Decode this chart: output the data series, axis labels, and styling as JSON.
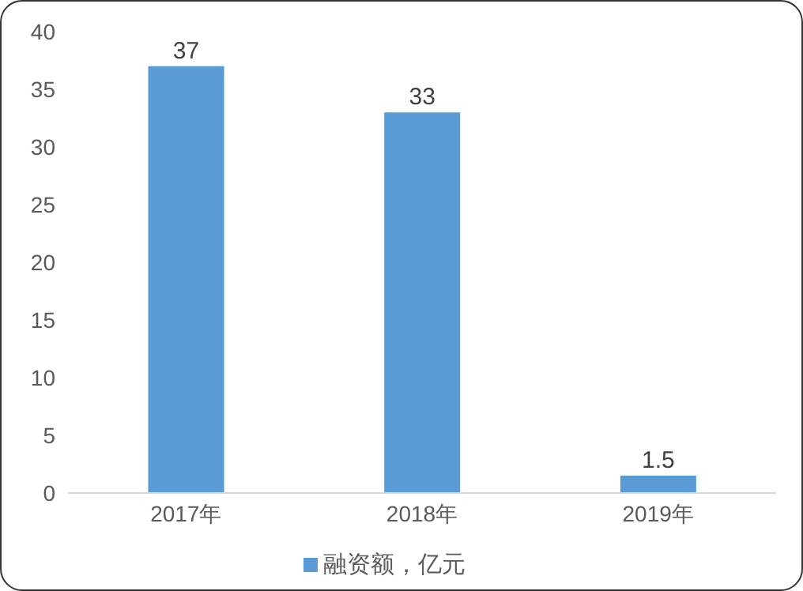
{
  "chart_data": {
    "type": "bar",
    "categories": [
      "2017年",
      "2018年",
      "2019年"
    ],
    "series": [
      {
        "name": "融资额，亿元",
        "color": "#5b9bd5",
        "values": [
          37,
          33,
          1.5
        ]
      }
    ],
    "ylim": [
      0,
      40
    ],
    "yticks": [
      0,
      5,
      10,
      15,
      20,
      25,
      30,
      35,
      40
    ],
    "grid": false,
    "legend": "bottom",
    "data_labels": true
  }
}
